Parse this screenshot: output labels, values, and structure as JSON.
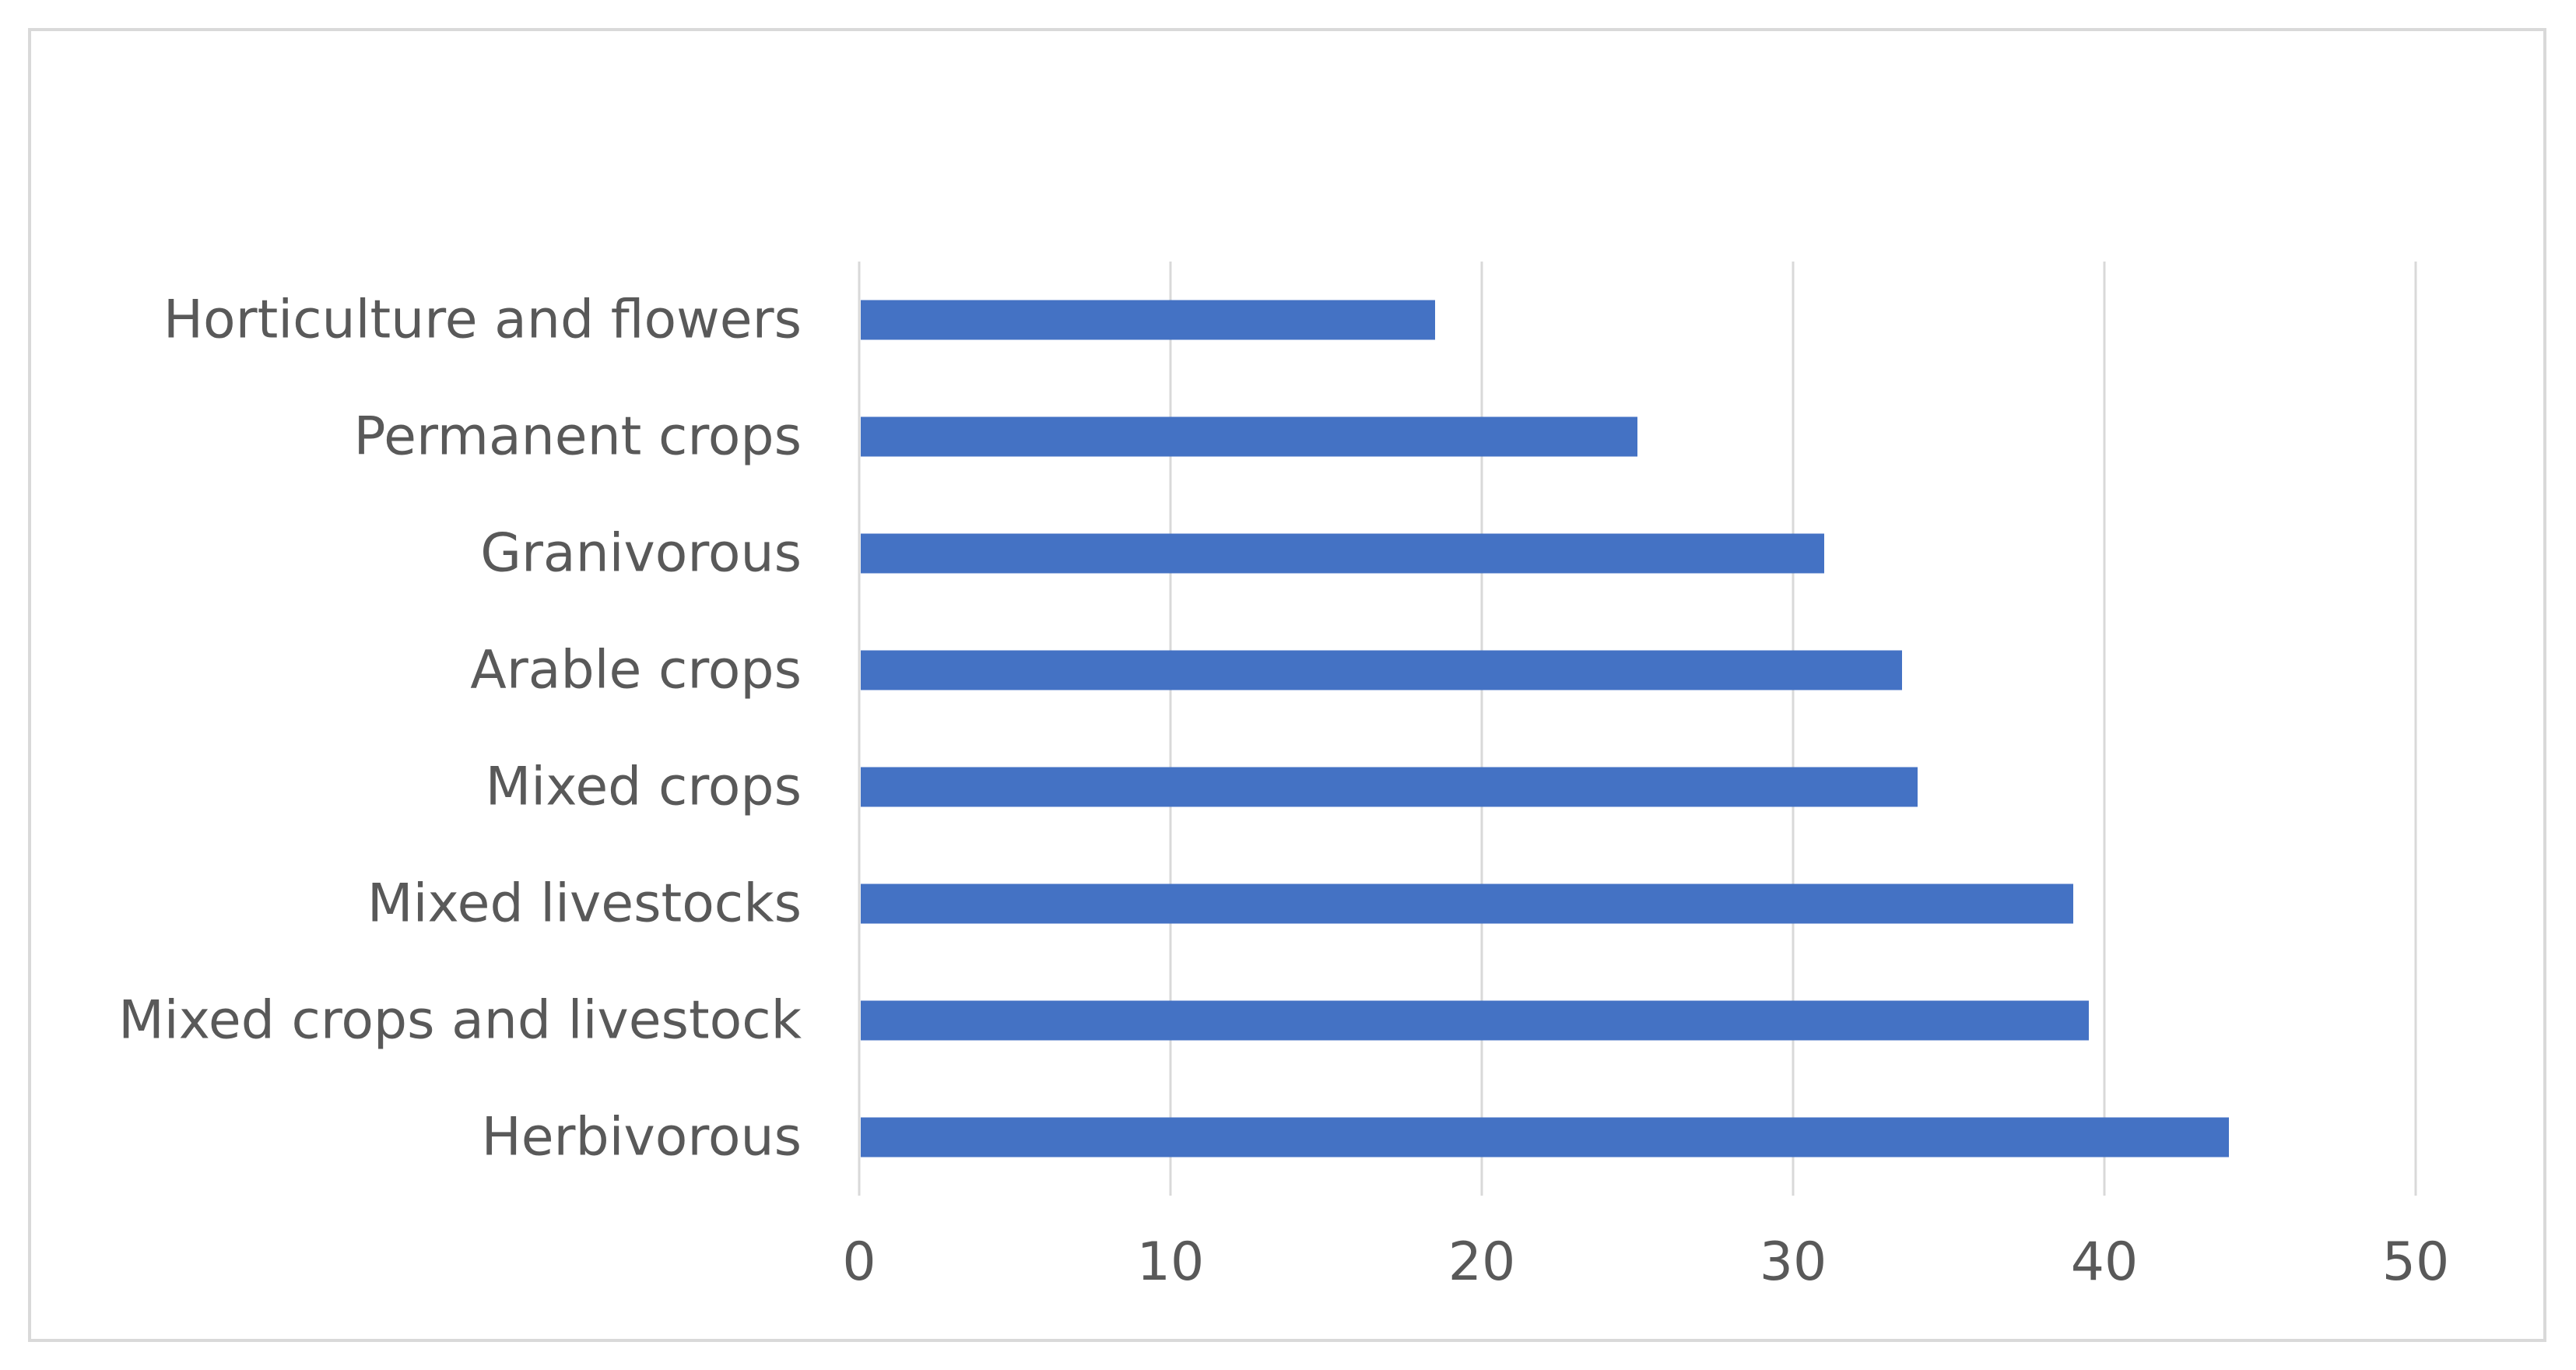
{
  "chart_data": {
    "type": "bar",
    "orientation": "horizontal",
    "title": "",
    "xlabel": "",
    "ylabel": "",
    "categories": [
      "Horticulture and flowers",
      "Permanent crops",
      "Granivorous",
      "Arable crops",
      "Mixed crops",
      "Mixed livestocks",
      "Mixed crops and livestock",
      "Herbivorous"
    ],
    "values": [
      18.5,
      25,
      31,
      33.5,
      34,
      39,
      39.5,
      44
    ],
    "xlim": [
      0,
      50
    ],
    "x_ticks": [
      "0",
      "10",
      "20",
      "30",
      "40",
      "50"
    ],
    "grid": true,
    "legend": "none",
    "bar_color": "#4472c4"
  }
}
